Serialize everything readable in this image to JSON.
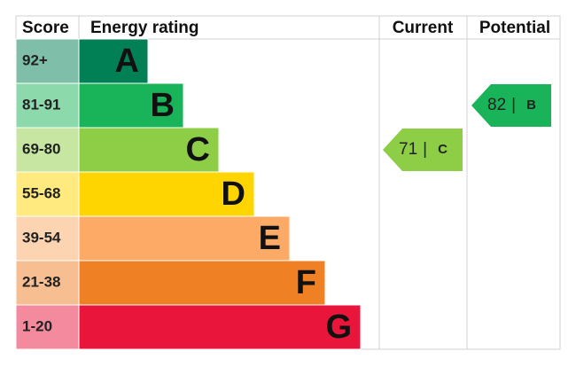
{
  "header": {
    "score": "Score",
    "rating": "Energy rating",
    "current": "Current",
    "potential": "Potential"
  },
  "bands": [
    {
      "range": "92+",
      "letter": "A",
      "color": "#008054",
      "tint": "#7fbfa9"
    },
    {
      "range": "81-91",
      "letter": "B",
      "color": "#19b459",
      "tint": "#8cd9ac"
    },
    {
      "range": "69-80",
      "letter": "C",
      "color": "#8dce46",
      "tint": "#c6e6a2"
    },
    {
      "range": "55-68",
      "letter": "D",
      "color": "#ffd500",
      "tint": "#ffea80"
    },
    {
      "range": "39-54",
      "letter": "E",
      "color": "#fcaa65",
      "tint": "#fdd4b2"
    },
    {
      "range": "21-38",
      "letter": "F",
      "color": "#ef8023",
      "tint": "#f7bf91"
    },
    {
      "range": "1-20",
      "letter": "G",
      "color": "#e9153b",
      "tint": "#f48a9d"
    }
  ],
  "current": {
    "score": 71,
    "separator": "|",
    "band": "C"
  },
  "potential": {
    "score": 82,
    "separator": "|",
    "band": "B"
  }
}
